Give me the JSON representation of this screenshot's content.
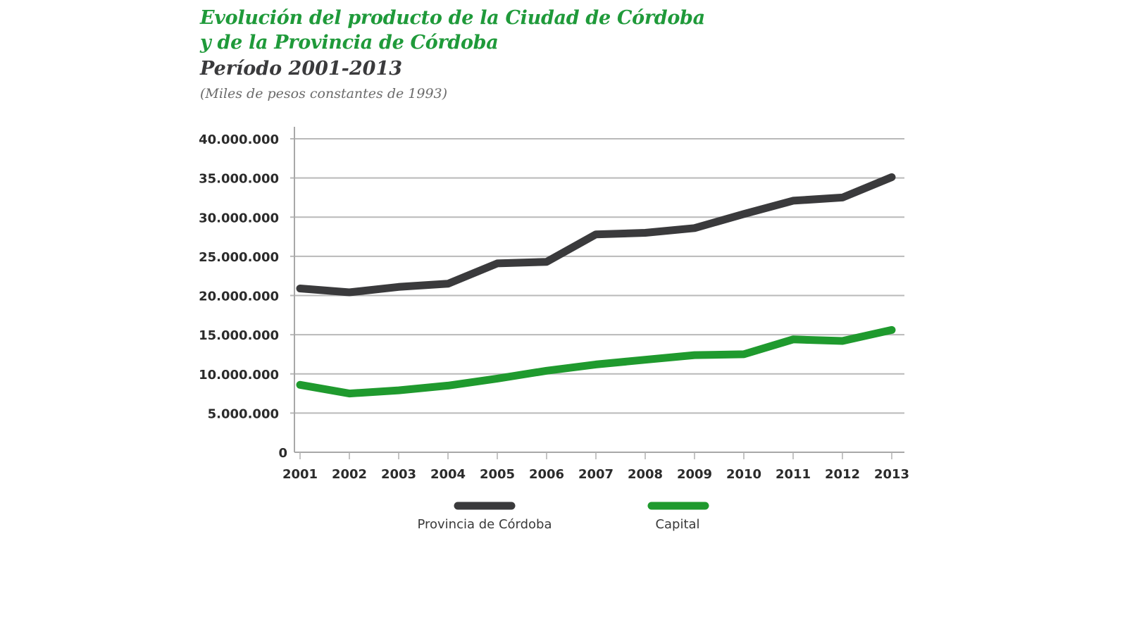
{
  "chart_data": {
    "type": "line",
    "title_line1": "Evolución del producto de la Ciudad de Córdoba",
    "title_line2": "y de la Provincia de Córdoba",
    "subtitle": "Período 2001-2013",
    "units": "(Miles de pesos constantes de 1993)",
    "xlabel": "",
    "ylabel": "",
    "x": [
      2001,
      2002,
      2003,
      2004,
      2005,
      2006,
      2007,
      2008,
      2009,
      2010,
      2011,
      2012,
      2013
    ],
    "x_tick_labels": [
      "2001",
      "2002",
      "2003",
      "2004",
      "2005",
      "2006",
      "2007",
      "2008",
      "2009",
      "2010",
      "2011",
      "2012",
      "2013"
    ],
    "ylim": [
      0,
      40000000
    ],
    "y_ticks": [
      0,
      5000000,
      10000000,
      15000000,
      20000000,
      25000000,
      30000000,
      35000000,
      40000000
    ],
    "y_tick_labels": [
      "0",
      "5.000.000",
      "10.000.000",
      "15.000.000",
      "20.000.000",
      "25.000.000",
      "30.000.000",
      "35.000.000",
      "40.000.000"
    ],
    "grid": true,
    "legend_position": "bottom",
    "series": [
      {
        "name": "Provincia de Córdoba",
        "color": "#3a3a3c",
        "values": [
          20900000,
          20400000,
          21100000,
          21500000,
          24100000,
          24300000,
          27800000,
          28000000,
          28600000,
          30400000,
          32100000,
          32500000,
          35100000
        ]
      },
      {
        "name": "Capital",
        "color": "#1f9a2e",
        "values": [
          8600000,
          7500000,
          7900000,
          8500000,
          9400000,
          10400000,
          11200000,
          11800000,
          12400000,
          12500000,
          14400000,
          14200000,
          15600000
        ]
      }
    ]
  },
  "colors": {
    "title_green": "#1f9a3a",
    "subtitle_dark": "#3a3a3c",
    "grid": "#b9b9b9"
  }
}
